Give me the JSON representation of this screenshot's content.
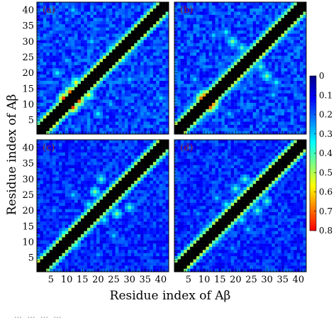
{
  "figure": {
    "xlabel": "Residue index of Aβ",
    "ylabel": "Residue index of Aβ",
    "caption_fragment": "… … … …"
  },
  "chart_data": {
    "type": "heatmap",
    "description_of_encoding": "",
    "xlabel": "Residue index of Aβ",
    "ylabel": "Residue index of Aβ",
    "xlim": [
      1,
      42
    ],
    "ylim": [
      1,
      42
    ],
    "xticks": [
      5,
      10,
      15,
      20,
      25,
      30,
      35,
      40
    ],
    "yticks": [
      5,
      10,
      15,
      20,
      25,
      30,
      35,
      40
    ],
    "colorbar": {
      "ticks": [
        "0",
        "0.1",
        "0.2",
        "0.3",
        "0.4",
        "0.5",
        "0.6",
        "0.7",
        "0.8"
      ],
      "range": [
        0,
        0.8
      ],
      "colormap": [
        "#00008f",
        "#0000ff",
        "#0080ff",
        "#00ffff",
        "#80ff80",
        "#ffff00",
        "#ff8000",
        "#ff0000"
      ]
    },
    "diagonal_band_color": "#000000",
    "panels": [
      {
        "tag": "(a)",
        "background": 0.17,
        "hotspots": [
          {
            "i": 12,
            "j": 9,
            "v": 0.75
          },
          {
            "i": 14,
            "j": 11,
            "v": 0.7
          },
          {
            "i": 17,
            "j": 13,
            "v": 0.55
          },
          {
            "i": 20,
            "j": 7,
            "v": 0.35
          },
          {
            "i": 28,
            "j": 24,
            "v": 0.35
          },
          {
            "i": 40,
            "j": 12,
            "v": 0.3
          },
          {
            "i": 30,
            "j": 18,
            "v": 0.3
          },
          {
            "i": 24,
            "j": 10,
            "v": 0.28
          }
        ]
      },
      {
        "tag": "(b)",
        "background": 0.17,
        "hotspots": [
          {
            "i": 12,
            "j": 9,
            "v": 0.7
          },
          {
            "i": 13,
            "j": 10,
            "v": 0.65
          },
          {
            "i": 30,
            "j": 19,
            "v": 0.45
          },
          {
            "i": 28,
            "j": 22,
            "v": 0.4
          },
          {
            "i": 33,
            "j": 17,
            "v": 0.35
          },
          {
            "i": 32,
            "j": 13,
            "v": 0.3
          },
          {
            "i": 18,
            "j": 7,
            "v": 0.3
          }
        ]
      },
      {
        "tag": "(c)",
        "background": 0.15,
        "hotspots": [
          {
            "i": 26,
            "j": 19,
            "v": 0.45
          },
          {
            "i": 30,
            "j": 21,
            "v": 0.4
          },
          {
            "i": 22,
            "j": 17,
            "v": 0.35
          },
          {
            "i": 13,
            "j": 9,
            "v": 0.35
          },
          {
            "i": 25,
            "j": 12,
            "v": 0.3
          },
          {
            "i": 20,
            "j": 6,
            "v": 0.25
          }
        ]
      },
      {
        "tag": "(d)",
        "background": 0.15,
        "hotspots": [
          {
            "i": 27,
            "j": 20,
            "v": 0.4
          },
          {
            "i": 30,
            "j": 23,
            "v": 0.4
          },
          {
            "i": 22,
            "j": 17,
            "v": 0.35
          },
          {
            "i": 14,
            "j": 10,
            "v": 0.3
          },
          {
            "i": 24,
            "j": 14,
            "v": 0.3
          },
          {
            "i": 19,
            "j": 8,
            "v": 0.25
          }
        ]
      }
    ]
  }
}
